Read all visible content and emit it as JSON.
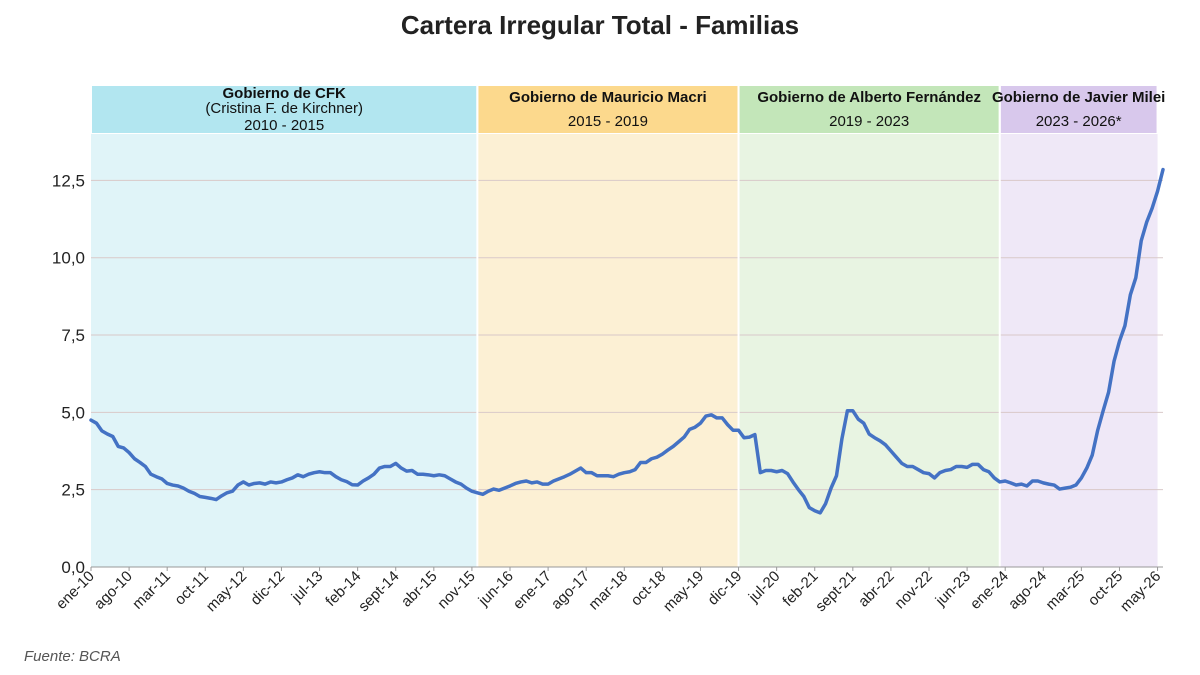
{
  "chart_data": {
    "type": "line",
    "title": "Cartera Irregular Total - Familias",
    "xlabel": "",
    "ylabel": "",
    "ylim": [
      0,
      14
    ],
    "yticks": [
      0,
      2.5,
      5,
      7.5,
      10,
      12.5
    ],
    "ytick_labels": [
      "0,0",
      "2,5",
      "5,0",
      "7,5",
      "10,0",
      "12,5"
    ],
    "grid": true,
    "start": "2010-01",
    "xtick_labels": [
      "ene-10",
      "ago-10",
      "mar-11",
      "oct-11",
      "may-12",
      "dic-12",
      "jul-13",
      "feb-14",
      "sept-14",
      "abr-15",
      "nov-15",
      "jun-16",
      "ene-17",
      "ago-17",
      "mar-18",
      "oct-18",
      "may-19",
      "dic-19",
      "jul-20",
      "feb-21",
      "sept-21",
      "abr-22",
      "nov-22",
      "jun-23",
      "ene-24",
      "ago-24",
      "mar-25",
      "oct-25",
      "may-26"
    ],
    "periods": [
      {
        "title": "Gobierno de CFK",
        "subtitle": "(Cristina F. de Kirchner)",
        "years": "2010 - 2015",
        "start": "2010-01",
        "end": "2015-12",
        "header_color": "#b2e6f0",
        "bg_color": "#e0f4f8"
      },
      {
        "title": "Gobierno de Mauricio Macri",
        "subtitle": "",
        "years": "2015 - 2019",
        "start": "2015-12",
        "end": "2019-12",
        "header_color": "#fcd98d",
        "bg_color": "#fcf0d4"
      },
      {
        "title": "Gobierno de Alberto Fernández",
        "subtitle": "",
        "years": "2019 - 2023",
        "start": "2019-12",
        "end": "2023-12",
        "header_color": "#c3e6b9",
        "bg_color": "#e8f4e2"
      },
      {
        "title": "Gobierno de Javier Milei",
        "subtitle": "",
        "years": "2023 - 2026*",
        "start": "2023-12",
        "end": "2026-05",
        "header_color": "#d8c8ec",
        "bg_color": "#efe8f7"
      }
    ],
    "series": [
      {
        "color": "#4472c4",
        "values": [
          4.75,
          4.65,
          4.4,
          4.3,
          4.22,
          3.9,
          3.85,
          3.7,
          3.5,
          3.38,
          3.25,
          3.0,
          2.92,
          2.85,
          2.7,
          2.65,
          2.62,
          2.55,
          2.45,
          2.38,
          2.28,
          2.25,
          2.22,
          2.18,
          2.3,
          2.4,
          2.45,
          2.65,
          2.75,
          2.65,
          2.7,
          2.72,
          2.68,
          2.75,
          2.72,
          2.75,
          2.82,
          2.88,
          2.98,
          2.92,
          3.0,
          3.05,
          3.08,
          3.05,
          3.05,
          2.92,
          2.82,
          2.76,
          2.66,
          2.65,
          2.78,
          2.88,
          3.0,
          3.2,
          3.25,
          3.25,
          3.35,
          3.2,
          3.1,
          3.12,
          3.0,
          3.0,
          2.98,
          2.95,
          2.98,
          2.95,
          2.85,
          2.75,
          2.68,
          2.55,
          2.45,
          2.4,
          2.35,
          2.45,
          2.52,
          2.48,
          2.55,
          2.62,
          2.7,
          2.75,
          2.78,
          2.72,
          2.75,
          2.68,
          2.68,
          2.78,
          2.85,
          2.92,
          3.0,
          3.1,
          3.2,
          3.05,
          3.05,
          2.95,
          2.95,
          2.95,
          2.92,
          3.0,
          3.05,
          3.08,
          3.15,
          3.38,
          3.38,
          3.5,
          3.55,
          3.65,
          3.78,
          3.9,
          4.05,
          4.2,
          4.45,
          4.52,
          4.65,
          4.88,
          4.92,
          4.82,
          4.82,
          4.6,
          4.42,
          4.42,
          4.18,
          4.2,
          4.28,
          3.05,
          3.12,
          3.12,
          3.08,
          3.12,
          3.02,
          2.75,
          2.5,
          2.28,
          1.92,
          1.82,
          1.75,
          2.05,
          2.55,
          2.95,
          4.15,
          5.05,
          5.05,
          4.78,
          4.65,
          4.3,
          4.18,
          4.08,
          3.95,
          3.75,
          3.55,
          3.35,
          3.25,
          3.25,
          3.15,
          3.05,
          3.02,
          2.88,
          3.05,
          3.12,
          3.15,
          3.25,
          3.25,
          3.22,
          3.32,
          3.32,
          3.15,
          3.08,
          2.88,
          2.75,
          2.78,
          2.72,
          2.65,
          2.68,
          2.62,
          2.78,
          2.78,
          2.72,
          2.68,
          2.65,
          2.52,
          2.55,
          2.58,
          2.65,
          2.88,
          3.2,
          3.62,
          4.42,
          5.05,
          5.65,
          6.65,
          7.3,
          7.8,
          8.8,
          9.35,
          10.55,
          11.15,
          11.6,
          12.15,
          12.85
        ]
      }
    ],
    "source": "Fuente: BCRA"
  }
}
